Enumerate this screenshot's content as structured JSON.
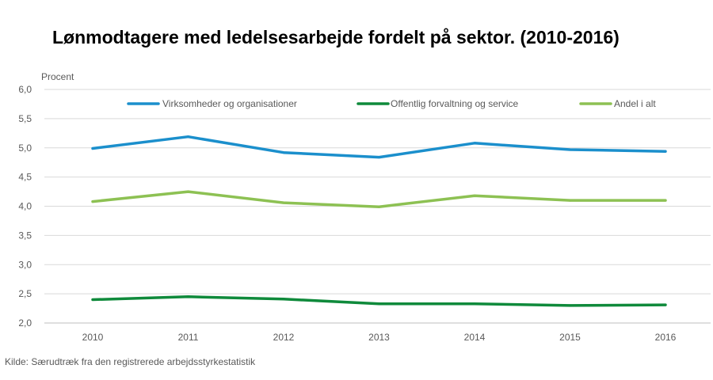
{
  "chart_data": {
    "type": "line",
    "title": "Lønmodtagere med ledelsesarbejde fordelt på sektor. (2010-2016)",
    "ylabel": "Procent",
    "xlabel": "",
    "categories": [
      "2010",
      "2011",
      "2012",
      "2013",
      "2014",
      "2015",
      "2016"
    ],
    "ylim": [
      2.0,
      6.0
    ],
    "yticks": [
      "2,0",
      "2,5",
      "3,0",
      "3,5",
      "4,0",
      "4,5",
      "5,0",
      "5,5",
      "6,0"
    ],
    "grid": true,
    "legend_position": "top",
    "series": [
      {
        "name": "Virksomheder og organisationer",
        "color": "#1B8FCC",
        "values": [
          4.99,
          5.19,
          4.92,
          4.84,
          5.08,
          4.97,
          4.94
        ]
      },
      {
        "name": "Offentlig forvaltning og service",
        "color": "#0F8A3B",
        "values": [
          2.4,
          2.45,
          2.41,
          2.33,
          2.33,
          2.3,
          2.31
        ]
      },
      {
        "name": "Andel i alt",
        "color": "#8DC153",
        "values": [
          4.08,
          4.25,
          4.06,
          3.99,
          4.18,
          4.1,
          4.1
        ]
      }
    ],
    "source": "Kilde: Særudtræk fra den registrerede arbejdsstyrkestatistik"
  }
}
